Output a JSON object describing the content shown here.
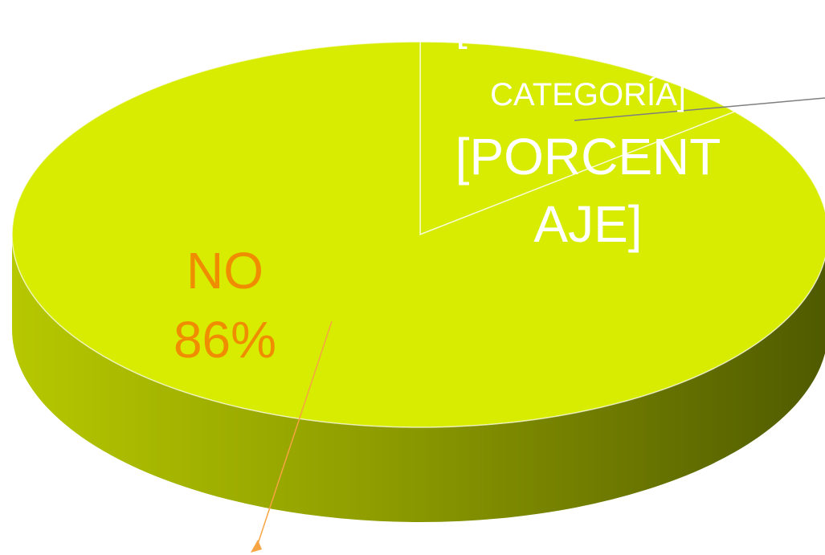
{
  "chart_data": {
    "type": "pie3d",
    "categories": [
      "NO",
      "[NOMBRE DE CATEGORÍA]"
    ],
    "values": [
      86,
      14
    ],
    "value_labels": [
      "86%",
      "[PORCENTAJE]"
    ],
    "colors": [
      "#d7ec00",
      "#d7ec00"
    ],
    "label_colors": [
      "#f08c00",
      "#ffffff"
    ]
  }
}
